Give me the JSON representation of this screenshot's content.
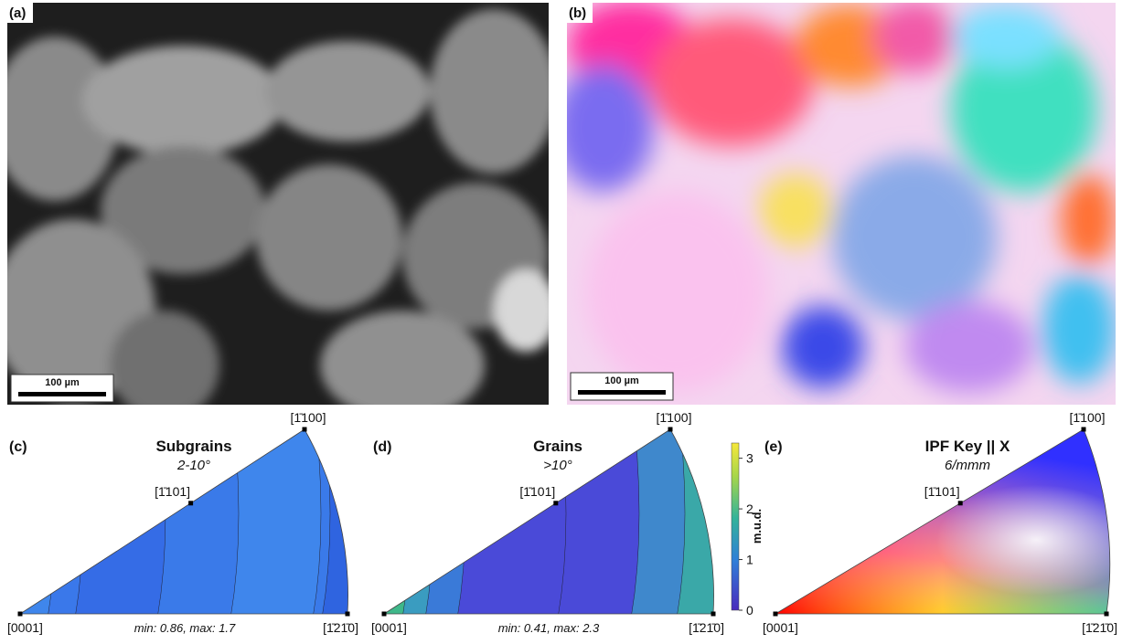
{
  "panels": [
    {
      "label": "(a)",
      "scale_bar": "100 µm"
    },
    {
      "label": "(b)",
      "scale_bar": "100 µm"
    }
  ],
  "pole_figures": [
    {
      "label": "(c)",
      "title": "Subgrains",
      "subtitle": "2-10°",
      "range": "min: 0.86, max: 1.7",
      "directions": {
        "origin": "[0001]",
        "right": "[1̄21̄0]",
        "top": "[1̄100]",
        "middle": "[1̄101]"
      }
    },
    {
      "label": "(d)",
      "title": "Grains",
      "subtitle": ">10°",
      "range": "min: 0.41, max: 2.3",
      "directions": {
        "origin": "[0001]",
        "right": "[1̄21̄0]",
        "top": "[1̄100]",
        "middle": "[1̄101]"
      }
    },
    {
      "label": "(e)",
      "title": "IPF Key || X",
      "subtitle": "6/mmm",
      "directions": {
        "origin": "[0001]",
        "right": "[1̄21̄0]",
        "top": "[1̄100]",
        "middle": "[1̄101]"
      }
    }
  ],
  "colorbar": {
    "label": "m.u.d.",
    "lim": [
      0,
      3.3
    ],
    "ticks": [
      0,
      1,
      2,
      3
    ]
  }
}
